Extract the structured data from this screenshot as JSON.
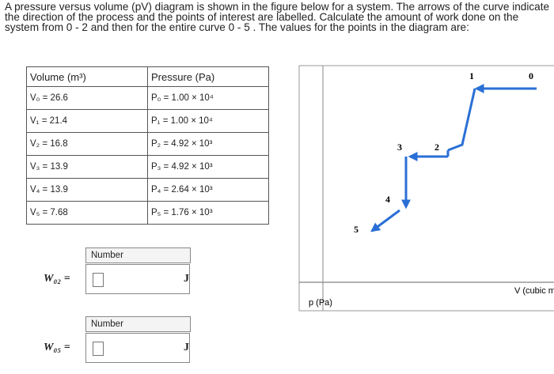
{
  "question": "A pressure versus volume (pV) diagram is shown in the figure below for a system. The arrows of the curve indicate the direction of the process and the points of interest are labelled. Calculate the amount of work done on the system from 0 - 2 and then for the entire curve 0 - 5 . The values for the points in the diagram are:",
  "table": {
    "headers": [
      "Volume (m³)",
      "Pressure (Pa)"
    ],
    "rows": [
      [
        "V₀ = 26.6",
        "P₀ = 1.00 × 10⁴"
      ],
      [
        "V₁ = 21.4",
        "P₁ = 1.00 × 10⁴"
      ],
      [
        "V₂ = 16.8",
        "P₂ = 4.92 × 10³"
      ],
      [
        "V₃ = 13.9",
        "P₃ = 4.92 × 10³"
      ],
      [
        "V₄ = 13.9",
        "P₄ = 2.64 × 10³"
      ],
      [
        "V₅ = 7.68",
        "P₅ = 1.76 × 10³"
      ]
    ]
  },
  "diagram": {
    "points": [
      "0",
      "1",
      "2",
      "3",
      "4",
      "5"
    ],
    "x_axis_label": "V (cubic m",
    "y_axis_label": "p (Pa)"
  },
  "answers": [
    {
      "field_label": "Number",
      "variable": "W₀₂ =",
      "unit": "J"
    },
    {
      "field_label": "Number",
      "variable": "W₀₅ =",
      "unit": "J"
    }
  ]
}
